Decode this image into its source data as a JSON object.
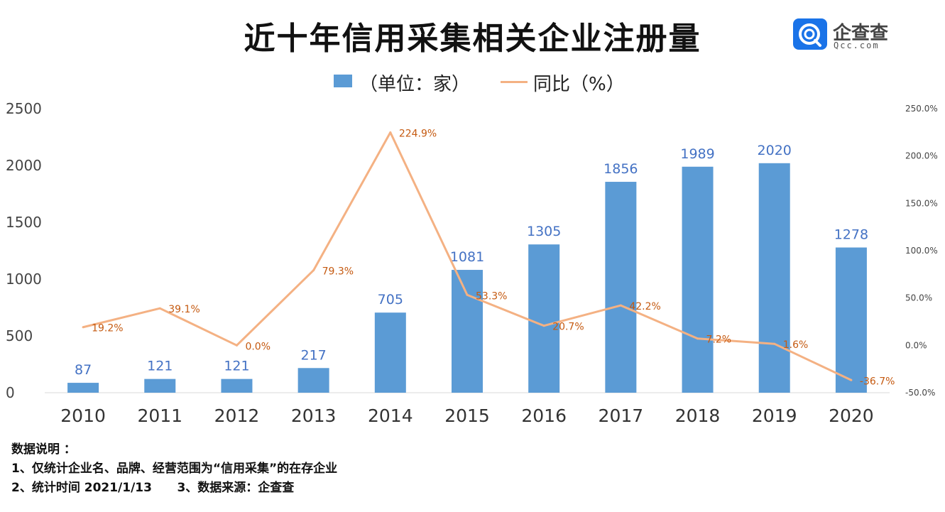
{
  "title": "近十年信用采集相关企业注册量",
  "logo": {
    "name": "企查查",
    "domain": "Qcc.com"
  },
  "legend": {
    "bar_label": "（单位：家）",
    "line_label": "同比（%）"
  },
  "colors": {
    "bar": "#5b9bd5",
    "bar_label": "#4472c4",
    "line": "#f4b183",
    "line_label": "#c55a11"
  },
  "chart_data": {
    "type": "bar",
    "categories": [
      "2010",
      "2011",
      "2012",
      "2013",
      "2014",
      "2015",
      "2016",
      "2017",
      "2018",
      "2019",
      "2020"
    ],
    "series": [
      {
        "name": "（单位：家）",
        "type": "bar",
        "axis": "left",
        "values": [
          87,
          121,
          121,
          217,
          705,
          1081,
          1305,
          1856,
          1989,
          2020,
          1278
        ],
        "labels": [
          "87",
          "121",
          "121",
          "217",
          "705",
          "1081",
          "1305",
          "1856",
          "1989",
          "2020",
          "1278"
        ]
      },
      {
        "name": "同比（%）",
        "type": "line",
        "axis": "right",
        "values": [
          19.2,
          39.1,
          0.0,
          79.3,
          224.9,
          53.3,
          20.7,
          42.2,
          7.2,
          1.6,
          -36.7
        ],
        "labels": [
          "19.2%",
          "39.1%",
          "0.0%",
          "79.3%",
          "224.9%",
          "53.3%",
          "20.7%",
          "42.2%",
          "7.2%",
          "1.6%",
          "-36.7%"
        ]
      }
    ],
    "y_left": {
      "min": 0,
      "max": 2500,
      "ticks": [
        "0",
        "500",
        "1000",
        "1500",
        "2000",
        "2500"
      ]
    },
    "y_right": {
      "min": -50,
      "max": 250,
      "ticks": [
        "-50.0%",
        "0.0%",
        "50.0%",
        "100.0%",
        "150.0%",
        "200.0%",
        "250.0%"
      ]
    },
    "grid": false,
    "legend_position": "top"
  },
  "notes": {
    "heading": "数据说明 ：",
    "line1": "1、仅统计企业名、品牌、经营范围为“信用采集”的在存企业",
    "line2": "2、统计时间 2021/1/13      3、数据来源：企查查"
  }
}
